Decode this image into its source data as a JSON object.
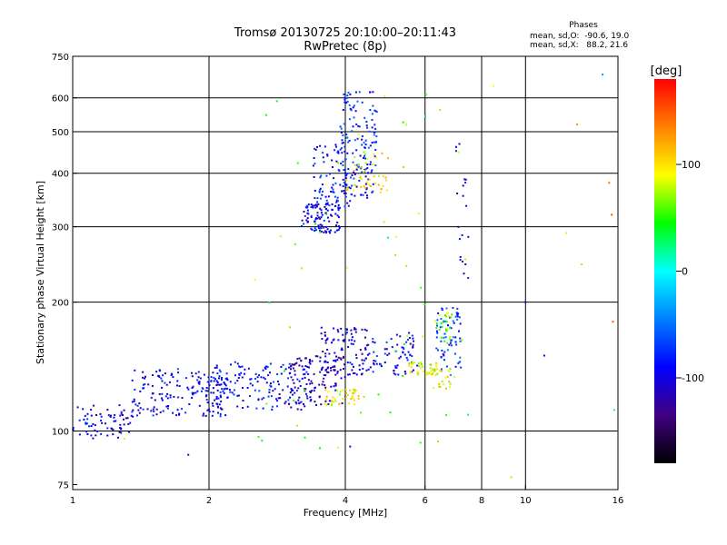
{
  "chart_data": {
    "type": "scatter",
    "title": "Tromsø 20130725 20:10:00–20:11:43",
    "subtitle": "RwPretec (8p)",
    "xlabel": "Frequency [MHz]",
    "ylabel": "Stationary phase Virtual Height [km]",
    "x_scale": "log",
    "y_scale": "log",
    "xlim": [
      1,
      16
    ],
    "ylim": [
      73,
      750
    ],
    "x_ticks": [
      1,
      2,
      4,
      6,
      8,
      10,
      16
    ],
    "y_ticks": [
      75,
      100,
      200,
      300,
      400,
      500,
      600,
      750
    ],
    "grid_x": [
      2,
      4,
      6,
      8,
      10
    ],
    "grid_y": [
      100,
      200,
      300,
      400,
      500,
      600
    ],
    "grid": true,
    "phase_stats": {
      "title": "Phases",
      "line_o": "mean, sd,O:  -90.6, 19.0",
      "line_x": "mean, sd,X:   88.2, 21.6"
    },
    "colorbar": {
      "label": "[deg]",
      "range": [
        -180,
        180
      ],
      "ticks": [
        100,
        0,
        -100
      ],
      "tick_labels": [
        "100",
        "0",
        "-100"
      ],
      "colors": [
        "#ff0000",
        "#ff8000",
        "#ffff00",
        "#00ff00",
        "#00ffff",
        "#0080ff",
        "#0000ff",
        "#400080",
        "#000000"
      ]
    },
    "clusters": [
      {
        "f": [
          1.0,
          1.35
        ],
        "h": [
          96,
          115
        ],
        "phase": -100,
        "n": 70
      },
      {
        "f": [
          1.35,
          2.2
        ],
        "h": [
          108,
          140
        ],
        "phase": -95,
        "n": 170
      },
      {
        "f": [
          2.0,
          3.4
        ],
        "h": [
          112,
          145
        ],
        "phase": -90,
        "n": 170
      },
      {
        "f": [
          3.0,
          4.0
        ],
        "h": [
          115,
          150
        ],
        "phase": -115,
        "n": 90
      },
      {
        "f": [
          3.5,
          4.5
        ],
        "h": [
          135,
          175
        ],
        "phase": -105,
        "n": 110
      },
      {
        "f": [
          4.5,
          5.8
        ],
        "h": [
          135,
          170
        ],
        "phase": -90,
        "n": 70
      },
      {
        "f": [
          3.6,
          4.4
        ],
        "h": [
          115,
          125
        ],
        "phase": 95,
        "n": 40
      },
      {
        "f": [
          5.5,
          6.4
        ],
        "h": [
          135,
          145
        ],
        "phase": 85,
        "n": 40
      },
      {
        "f": [
          6.2,
          7.0
        ],
        "h": [
          125,
          140
        ],
        "phase": 90,
        "n": 25
      },
      {
        "f": [
          6.3,
          7.2
        ],
        "h": [
          135,
          195
        ],
        "phase": -70,
        "n": 70
      },
      {
        "f": [
          6.3,
          6.9
        ],
        "h": [
          160,
          190
        ],
        "phase": 60,
        "n": 25
      },
      {
        "f": [
          3.2,
          3.9
        ],
        "h": [
          290,
          340
        ],
        "phase": -95,
        "n": 100
      },
      {
        "f": [
          3.4,
          4.2
        ],
        "h": [
          330,
          470
        ],
        "phase": -85,
        "n": 90
      },
      {
        "f": [
          3.9,
          4.7
        ],
        "h": [
          350,
          620
        ],
        "phase": -80,
        "n": 140
      },
      {
        "f": [
          4.0,
          5.0
        ],
        "h": [
          360,
          450
        ],
        "phase": 95,
        "n": 45
      },
      {
        "f": [
          7.0,
          7.5
        ],
        "h": [
          200,
          520
        ],
        "phase": -95,
        "n": 20
      },
      {
        "f": [
          2.5,
          7.5
        ],
        "h": [
          90,
          620
        ],
        "phase": 60,
        "n": 55
      }
    ],
    "outliers": [
      {
        "f": 14.8,
        "h": 680,
        "phase": -40
      },
      {
        "f": 13.0,
        "h": 520,
        "phase": 130
      },
      {
        "f": 15.3,
        "h": 380,
        "phase": 140
      },
      {
        "f": 15.5,
        "h": 320,
        "phase": 150
      },
      {
        "f": 12.3,
        "h": 290,
        "phase": 100
      },
      {
        "f": 13.3,
        "h": 245,
        "phase": 110
      },
      {
        "f": 15.6,
        "h": 180,
        "phase": 150
      },
      {
        "f": 11.0,
        "h": 150,
        "phase": -100
      },
      {
        "f": 10.0,
        "h": 200,
        "phase": -95
      },
      {
        "f": 15.7,
        "h": 112,
        "phase": 20
      },
      {
        "f": 8.5,
        "h": 640,
        "phase": 90
      },
      {
        "f": 9.3,
        "h": 78,
        "phase": 110
      },
      {
        "f": 1.8,
        "h": 88,
        "phase": -120
      },
      {
        "f": 4.1,
        "h": 92,
        "phase": -100
      },
      {
        "f": 1.3,
        "h": 96,
        "phase": 100
      }
    ]
  }
}
